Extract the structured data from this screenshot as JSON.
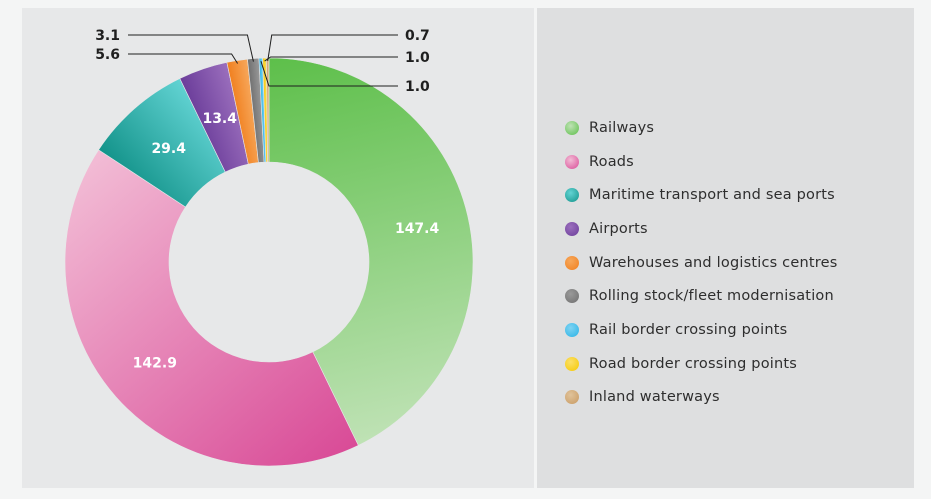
{
  "chart_data": {
    "type": "pie",
    "donut": true,
    "title": "",
    "legend_position": "right",
    "slices": [
      {
        "name": "Railways",
        "value": 147.4,
        "label": "147.4",
        "color": "#5dbf4a",
        "color_light": "#bfe2b5"
      },
      {
        "name": "Roads",
        "value": 142.9,
        "label": "142.9",
        "color": "#d94b97",
        "color_light": "#f2bcd5"
      },
      {
        "name": "Maritime transport and sea ports",
        "value": 29.4,
        "label": "29.4",
        "color": "#13938a",
        "color_light": "#62d3d3"
      },
      {
        "name": "Airports",
        "value": 13.4,
        "label": "13.4",
        "color": "#6b3d9a",
        "color_light": "#9b6fbd"
      },
      {
        "name": "Warehouses and logistics centres",
        "value": 5.6,
        "label": "5.6",
        "color": "#f07f1e",
        "color_light": "#f7a85c"
      },
      {
        "name": "Rolling stock/fleet modernisation",
        "value": 3.1,
        "label": "3.1",
        "color": "#6f6f6f",
        "color_light": "#9a9a9a"
      },
      {
        "name": "Rail border crossing points",
        "value": 1.0,
        "label": "1.0",
        "color": "#2ab3e6",
        "color_light": "#7fd3f2"
      },
      {
        "name": "Road border crossing points",
        "value": 1.0,
        "label": "1.0",
        "color": "#f5c800",
        "color_light": "#fbe06a"
      },
      {
        "name": "Inland waterways",
        "value": 0.7,
        "label": "0.7",
        "color": "#c89a62",
        "color_light": "#e0c39b"
      }
    ]
  }
}
